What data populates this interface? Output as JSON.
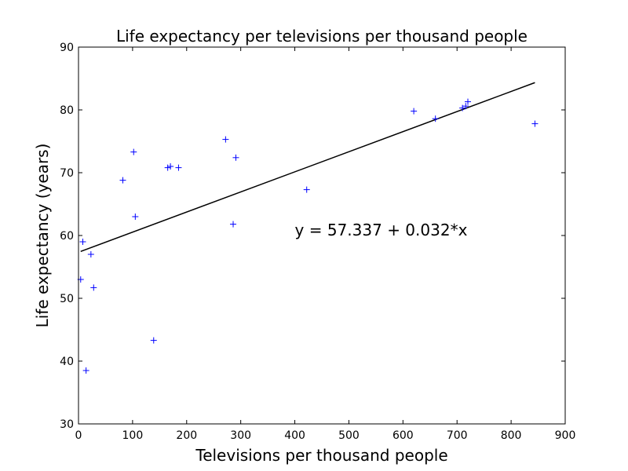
{
  "chart_data": {
    "type": "scatter",
    "title": "Life expectancy per televisions per thousand people",
    "xlabel": "Televisions per thousand people",
    "ylabel": "Life expectancy (years)",
    "xlim": [
      0,
      900
    ],
    "ylim": [
      30,
      90
    ],
    "x_ticks": [
      0,
      100,
      200,
      300,
      400,
      500,
      600,
      700,
      800,
      900
    ],
    "y_ticks": [
      30,
      40,
      50,
      60,
      70,
      80,
      90
    ],
    "grid": false,
    "legend": "none",
    "marker": "+",
    "point_color": "#0000ff",
    "line_color": "#000000",
    "points": [
      {
        "x": 4,
        "y": 53
      },
      {
        "x": 8,
        "y": 59
      },
      {
        "x": 14,
        "y": 38.5
      },
      {
        "x": 23,
        "y": 57
      },
      {
        "x": 28,
        "y": 51.7
      },
      {
        "x": 82,
        "y": 68.8
      },
      {
        "x": 102,
        "y": 73.3
      },
      {
        "x": 105,
        "y": 63
      },
      {
        "x": 139,
        "y": 43.3
      },
      {
        "x": 165,
        "y": 70.8
      },
      {
        "x": 170,
        "y": 71
      },
      {
        "x": 185,
        "y": 70.8
      },
      {
        "x": 272,
        "y": 75.3
      },
      {
        "x": 286,
        "y": 61.8
      },
      {
        "x": 291,
        "y": 72.4
      },
      {
        "x": 422,
        "y": 67.3
      },
      {
        "x": 620,
        "y": 79.8
      },
      {
        "x": 660,
        "y": 78.6
      },
      {
        "x": 710,
        "y": 80.3
      },
      {
        "x": 716,
        "y": 80.6
      },
      {
        "x": 720,
        "y": 81.3
      },
      {
        "x": 844,
        "y": 77.8
      }
    ],
    "fit_line": {
      "intercept": 57.337,
      "slope": 0.032,
      "x_range": [
        4,
        844
      ]
    },
    "annotation": {
      "text": "y = 57.337 + 0.032*x",
      "x": 400,
      "y": 60
    }
  }
}
